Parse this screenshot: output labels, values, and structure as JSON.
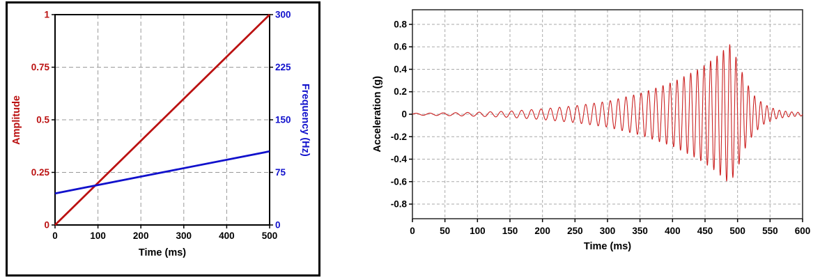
{
  "chart_data": [
    {
      "type": "line",
      "title": "",
      "xlabel": "Time (ms)",
      "x_range": [
        0,
        500
      ],
      "x_tick_values": [
        0,
        100,
        200,
        300,
        400,
        500
      ],
      "x_tick_labels": [
        "0",
        "100",
        "200",
        "300",
        "400",
        "500"
      ],
      "grid": true,
      "grid_color": "#999999",
      "left_axis": {
        "label": "Amplitude",
        "color": "#bb1111",
        "range": [
          0,
          1
        ],
        "tick_values": [
          0,
          0.25,
          0.5,
          0.75,
          1
        ],
        "tick_labels": [
          "0",
          "0.25",
          "0.5",
          "0.75",
          "1"
        ]
      },
      "right_axis": {
        "label": "Frequency (Hz)",
        "color": "#1111cc",
        "range": [
          0,
          300
        ],
        "tick_values": [
          0,
          75,
          150,
          225,
          300
        ],
        "tick_labels": [
          "0",
          "75",
          "150",
          "225",
          "300"
        ]
      },
      "series": [
        {
          "name": "Amplitude",
          "axis": "left",
          "color": "#bb1111",
          "x": [
            0,
            500
          ],
          "y": [
            0,
            1
          ]
        },
        {
          "name": "Frequency (Hz)",
          "axis": "right",
          "color": "#1111cc",
          "x": [
            0,
            500
          ],
          "y": [
            45,
            105
          ]
        }
      ]
    },
    {
      "type": "line",
      "title": "",
      "xlabel": "Time (ms)",
      "ylabel": "Acceleration (g)",
      "x_range": [
        0,
        600
      ],
      "x_tick_values": [
        0,
        50,
        100,
        150,
        200,
        250,
        300,
        350,
        400,
        450,
        500,
        550,
        600
      ],
      "x_tick_labels": [
        "0",
        "50",
        "100",
        "150",
        "200",
        "250",
        "300",
        "350",
        "400",
        "450",
        "500",
        "550",
        "600"
      ],
      "y_range": [
        -0.93,
        0.93
      ],
      "y_tick_values": [
        0.8,
        0.6,
        0.4,
        0.2,
        0,
        -0.2,
        -0.4,
        -0.6,
        -0.8
      ],
      "y_tick_labels": [
        "0.8",
        "0.6",
        "0.4",
        "0.2",
        "0",
        "-0.2",
        "-0.4",
        "-0.6",
        "-0.8"
      ],
      "grid": true,
      "grid_color": "#aaaaaa",
      "frame_color": "#333333",
      "line_color": "#cc2222",
      "signal": {
        "kind": "linear-chirp",
        "freq_start_hz": 45,
        "freq_end_hz": 105,
        "sweep_duration_ms": 500,
        "sample_step_ms": 0.25,
        "peak_g": 0.62,
        "peak_time_ms": 490,
        "envelope_ms_g": [
          [
            0,
            0.008
          ],
          [
            50,
            0.012
          ],
          [
            100,
            0.018
          ],
          [
            150,
            0.028
          ],
          [
            200,
            0.048
          ],
          [
            250,
            0.075
          ],
          [
            300,
            0.115
          ],
          [
            350,
            0.185
          ],
          [
            400,
            0.285
          ],
          [
            440,
            0.4
          ],
          [
            465,
            0.5
          ],
          [
            488,
            0.62
          ],
          [
            500,
            0.48
          ],
          [
            512,
            0.3
          ],
          [
            525,
            0.17
          ],
          [
            540,
            0.09
          ],
          [
            560,
            0.04
          ],
          [
            580,
            0.022
          ],
          [
            600,
            0.015
          ]
        ]
      }
    }
  ]
}
